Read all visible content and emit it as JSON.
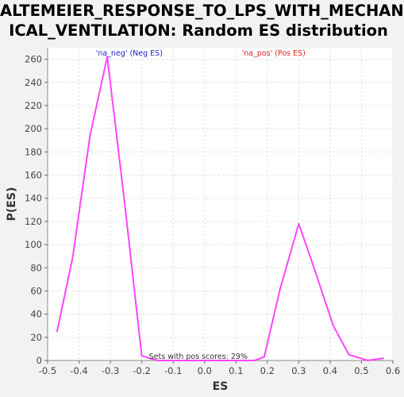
{
  "chart_data": {
    "type": "line",
    "title_lines": [
      "ALTEMEIER_RESPONSE_TO_LPS_WITH_MECHAN",
      "ICAL_VENTILATION: Random ES distribution"
    ],
    "xlabel": "ES",
    "ylabel": "P(ES)",
    "xlim": [
      -0.5,
      0.6
    ],
    "ylim": [
      0,
      270
    ],
    "x_ticks": [
      -0.5,
      -0.4,
      -0.3,
      -0.2,
      -0.1,
      0.0,
      0.1,
      0.2,
      0.3,
      0.4,
      0.5,
      0.6
    ],
    "x_tick_labels": [
      "-0.5",
      "-0.4",
      "-0.3",
      "-0.2",
      "-0.1",
      "0.0",
      "0.1",
      "0.2",
      "0.3",
      "0.4",
      "0.5",
      "0.6"
    ],
    "y_ticks": [
      0,
      20,
      40,
      60,
      80,
      100,
      120,
      140,
      160,
      180,
      200,
      220,
      240,
      260
    ],
    "y_tick_labels": [
      "0",
      "20",
      "40",
      "60",
      "80",
      "100",
      "120",
      "140",
      "160",
      "180",
      "200",
      "220",
      "240",
      "260"
    ],
    "grid": true,
    "series": [
      {
        "color": "#ff44ff",
        "x": [
          -0.47,
          -0.42,
          -0.365,
          -0.31,
          -0.255,
          -0.2,
          -0.15,
          0.16,
          0.19,
          0.24,
          0.3,
          0.35,
          0.41,
          0.46,
          0.52,
          0.57
        ],
        "y": [
          25,
          89,
          194,
          262,
          137,
          4,
          0,
          0,
          3,
          61,
          118,
          79,
          30,
          5,
          0,
          2
        ]
      }
    ],
    "annotations": {
      "neg_label": "'na_neg' (Neg ES)",
      "pos_label": "'na_pos' (Pos ES)",
      "sets_text": "Sets with pos scores: 29%"
    },
    "colors": {
      "neg_label": "#2222cc",
      "pos_label": "#dd2222",
      "line": "#ff44ff",
      "plot_bg": "#ffffff",
      "page_bg": "#f2f2f2"
    }
  }
}
